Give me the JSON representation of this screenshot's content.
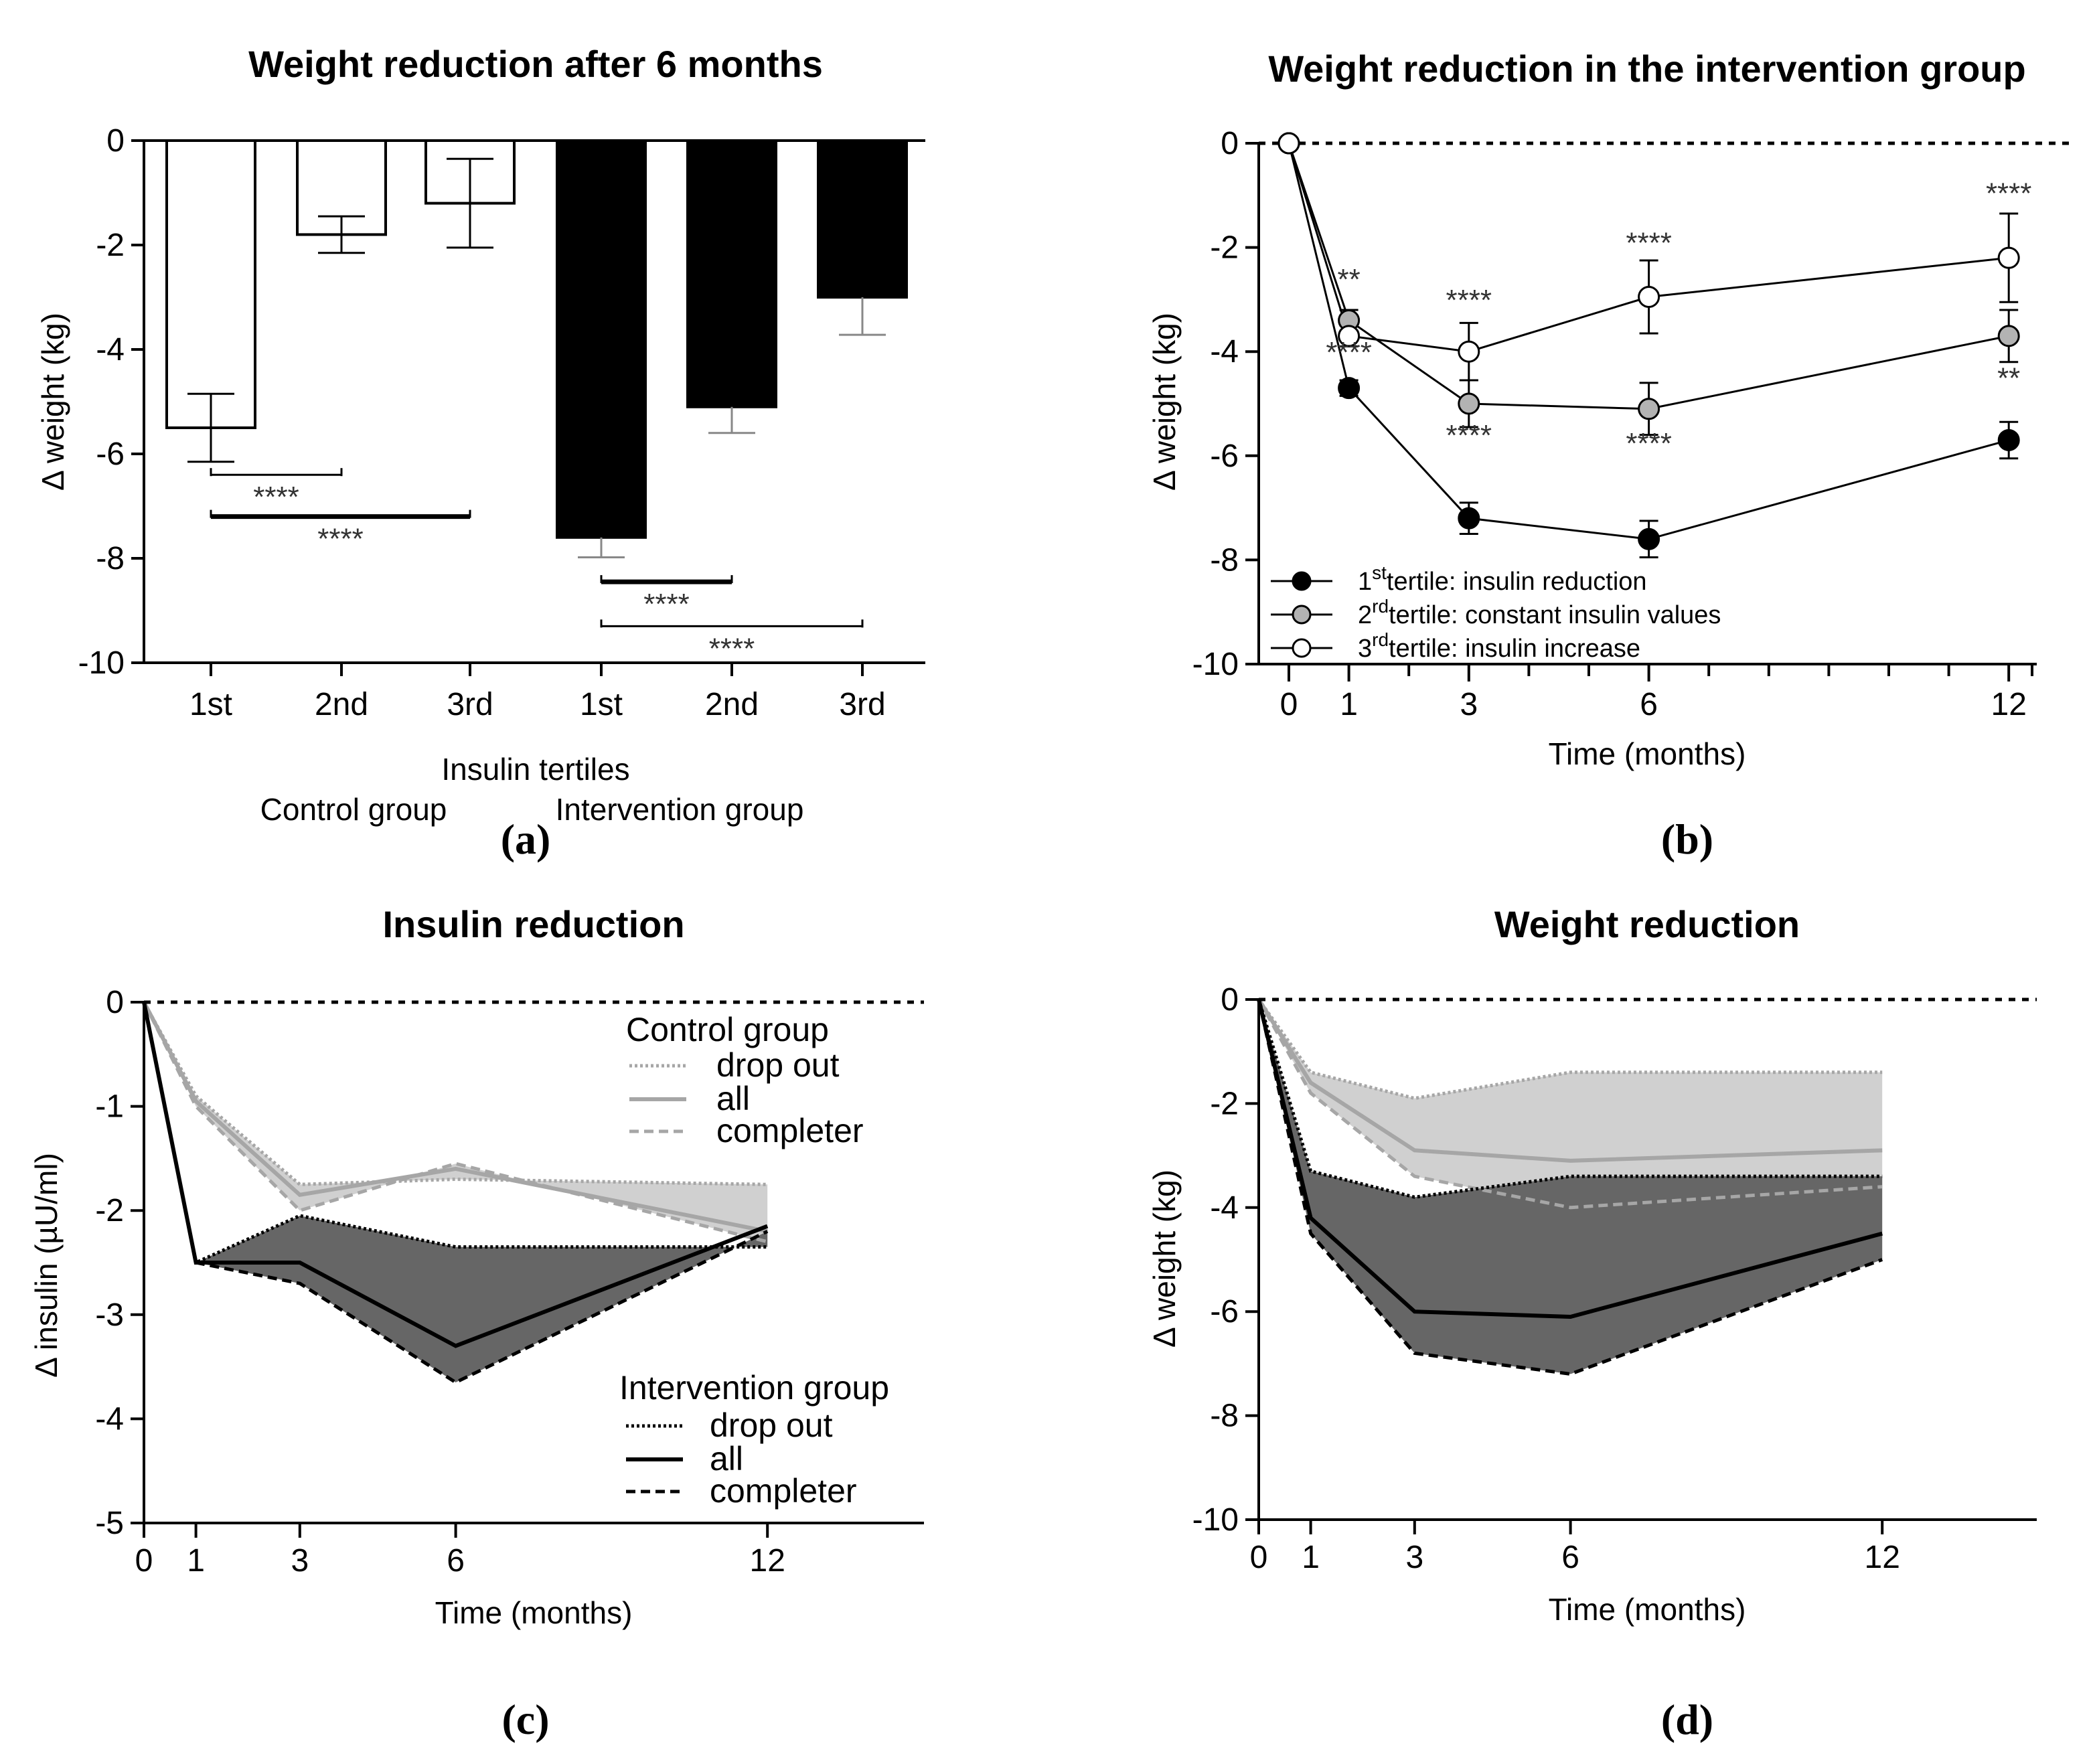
{
  "colors": {
    "black": "#000000",
    "white": "#ffffff",
    "gray_marker": "#b3b3b3",
    "control_line": "#a6a6a6",
    "control_fill": "#d0d0d0",
    "intervention_fill": "#666666",
    "error_gray": "#888888"
  },
  "panel_a": {
    "label": "(a)",
    "chart_data": {
      "type": "bar",
      "title": "Weight reduction after 6 months",
      "ylabel": "Δ weight (kg)",
      "xlabel": "Insulin tertiles",
      "group_labels": [
        "Control group",
        "Intervention group"
      ],
      "categories": [
        "1st",
        "2nd",
        "3rd",
        "1st",
        "2nd",
        "3rd"
      ],
      "series": [
        {
          "name": "Control group",
          "values": [
            -5.5,
            -1.8,
            -1.2,
            null,
            null,
            null
          ],
          "err": [
            0.65,
            0.35,
            0.85,
            null,
            null,
            null
          ],
          "color": "#ffffff"
        },
        {
          "name": "Intervention group",
          "values": [
            null,
            null,
            null,
            -7.6,
            -5.1,
            -3.0
          ],
          "err": [
            null,
            null,
            null,
            0.38,
            0.5,
            0.72
          ],
          "color": "#000000"
        }
      ],
      "ylim": [
        -10,
        0
      ],
      "yticks": [
        0,
        -2,
        -4,
        -6,
        -8,
        -10
      ],
      "brackets": [
        {
          "from": 0,
          "to": 1,
          "y": -6.4,
          "label": "****"
        },
        {
          "from": 0,
          "to": 2,
          "y": -7.2,
          "label": "****"
        },
        {
          "from": 3,
          "to": 4,
          "y": -8.45,
          "label": "****"
        },
        {
          "from": 3,
          "to": 5,
          "y": -9.3,
          "label": "****"
        }
      ]
    }
  },
  "panel_b": {
    "label": "(b)",
    "chart_data": {
      "type": "line",
      "title": "Weight reduction in the intervention group",
      "xlabel": "Time (months)",
      "ylabel": "Δ weight (kg)",
      "x": [
        0,
        1,
        3,
        6,
        12
      ],
      "xlim": [
        -0.5,
        13
      ],
      "ylim": [
        -10,
        0
      ],
      "xticks": [
        0,
        1,
        3,
        6,
        12
      ],
      "yticks": [
        0,
        -2,
        -4,
        -6,
        -8,
        -10
      ],
      "series": [
        {
          "name": "1st tertile: insulin reduction",
          "legend_sup": "st",
          "legend_pre": "1",
          "legend_rest": "tertile:   insulin reduction",
          "values": [
            0,
            -4.7,
            -7.2,
            -7.6,
            -5.7
          ],
          "err": [
            0,
            0.15,
            0.3,
            0.35,
            0.35
          ],
          "fill": "#000000"
        },
        {
          "name": "2nd tertile: constant insulin values",
          "legend_sup": "rd",
          "legend_pre": "2",
          "legend_rest": "tertile:  constant insulin values",
          "values": [
            0,
            -3.4,
            -5.0,
            -5.1,
            -3.7
          ],
          "err": [
            0,
            0.2,
            0.45,
            0.5,
            0.5
          ],
          "fill": "#b3b3b3"
        },
        {
          "name": "3rd tertile: insulin increase",
          "legend_sup": "rd",
          "legend_pre": "3",
          "legend_rest": "tertile:   insulin increase",
          "values": [
            0,
            -3.7,
            -4.0,
            -2.95,
            -2.2
          ],
          "err": [
            0,
            0.2,
            0.55,
            0.7,
            0.85
          ],
          "fill": "#ffffff"
        }
      ],
      "annotations": [
        {
          "x": 1,
          "y": -2.8,
          "text": "**"
        },
        {
          "x": 1,
          "y": -4.2,
          "text": "****"
        },
        {
          "x": 3,
          "y": -3.2,
          "text": "****"
        },
        {
          "x": 3,
          "y": -5.8,
          "text": "****"
        },
        {
          "x": 6,
          "y": -2.1,
          "text": "****"
        },
        {
          "x": 6,
          "y": -5.95,
          "text": "****"
        },
        {
          "x": 12,
          "y": -1.15,
          "text": "****"
        },
        {
          "x": 12,
          "y": -4.7,
          "text": "**"
        }
      ]
    }
  },
  "panel_c": {
    "label": "(c)",
    "chart_data": {
      "type": "area",
      "title": "Insulin reduction",
      "xlabel": "Time (months)",
      "ylabel": "Δ insulin (µU/ml)",
      "x": [
        0,
        1,
        3,
        6,
        12
      ],
      "xlim": [
        0,
        15
      ],
      "ylim": [
        -5,
        0
      ],
      "xticks": [
        0,
        1,
        3,
        6,
        12
      ],
      "yticks": [
        0,
        -1,
        -2,
        -3,
        -4,
        -5
      ],
      "control": {
        "legend_title": "Control group",
        "drop_out": [
          0,
          -0.9,
          -1.75,
          -1.7,
          -1.75
        ],
        "all": [
          0,
          -0.95,
          -1.85,
          -1.6,
          -2.2
        ],
        "completer": [
          0,
          -1.0,
          -2.0,
          -1.55,
          -2.3
        ]
      },
      "intervention": {
        "legend_title": "Intervention group",
        "drop_out": [
          0,
          -2.5,
          -2.05,
          -2.35,
          -2.35
        ],
        "all": [
          0,
          -2.5,
          -2.5,
          -3.3,
          -2.15
        ],
        "completer": [
          0,
          -2.5,
          -2.7,
          -3.65,
          -2.2
        ]
      },
      "legend_labels": [
        "drop out",
        "all",
        "completer"
      ]
    }
  },
  "panel_d": {
    "label": "(d)",
    "chart_data": {
      "type": "area",
      "title": "Weight reduction",
      "xlabel": "Time (months)",
      "ylabel": "Δ weight (kg)",
      "x": [
        0,
        1,
        3,
        6,
        12
      ],
      "xlim": [
        0,
        15
      ],
      "ylim": [
        -10,
        0
      ],
      "xticks": [
        0,
        1,
        3,
        6,
        12
      ],
      "yticks": [
        0,
        -2,
        -4,
        -6,
        -8,
        -10
      ],
      "control": {
        "drop_out": [
          0,
          -1.4,
          -1.9,
          -1.4,
          -1.4
        ],
        "all": [
          0,
          -1.6,
          -2.9,
          -3.1,
          -2.9
        ],
        "completer": [
          0,
          -1.8,
          -3.4,
          -4.0,
          -3.6
        ]
      },
      "intervention": {
        "drop_out": [
          0,
          -3.3,
          -3.8,
          -3.4,
          -3.4
        ],
        "all": [
          0,
          -4.2,
          -6.0,
          -6.1,
          -4.5
        ],
        "completer": [
          0,
          -4.5,
          -6.8,
          -7.2,
          -5.0
        ]
      }
    }
  }
}
